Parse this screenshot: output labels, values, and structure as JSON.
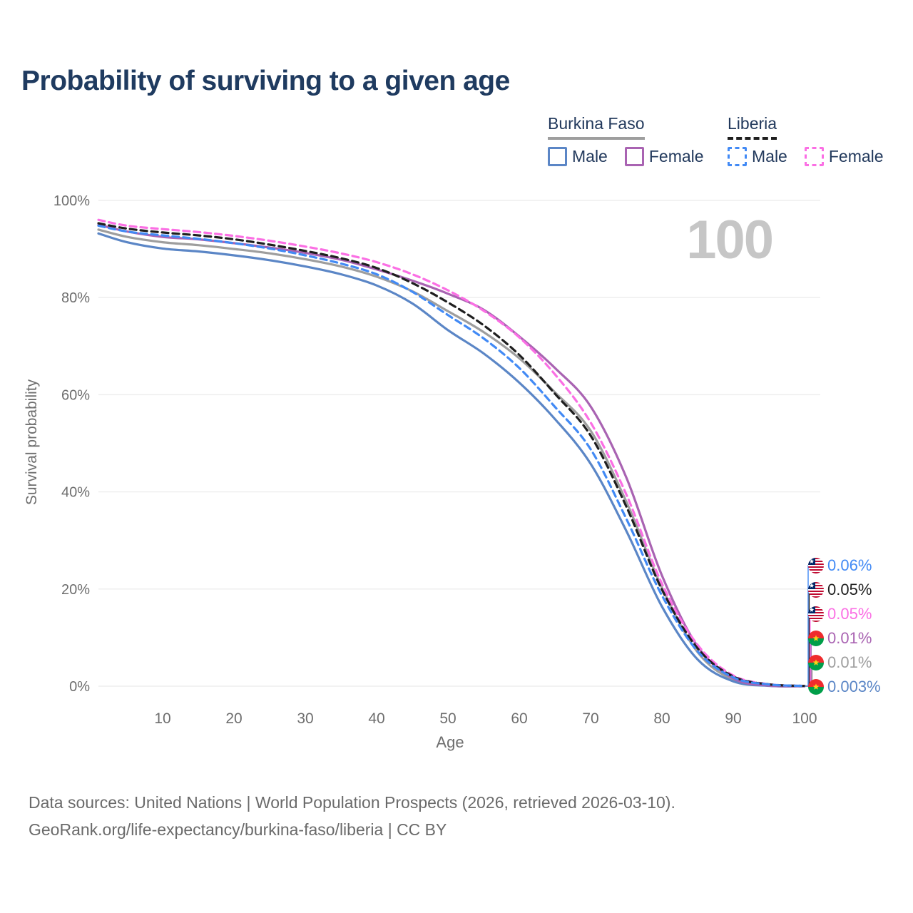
{
  "title": "Probability of surviving to a given age",
  "watermark": "100",
  "legend": {
    "groups": [
      {
        "name": "Burkina Faso",
        "line_style": "solid",
        "line_color": "#9e9e9e",
        "items": [
          {
            "label": "Male",
            "color": "#5b86c6",
            "dashed": false
          },
          {
            "label": "Female",
            "color": "#a963b2",
            "dashed": false
          }
        ]
      },
      {
        "name": "Liberia",
        "line_style": "dashed",
        "line_color": "#1f1f1f",
        "items": [
          {
            "label": "Male",
            "color": "#428af5",
            "dashed": true
          },
          {
            "label": "Female",
            "color": "#fb6fe4",
            "dashed": true
          }
        ]
      }
    ]
  },
  "chart_data": {
    "type": "line",
    "title": "Probability of surviving to a given age",
    "xlabel": "Age",
    "ylabel": "Survival probability",
    "xlim": [
      1,
      100
    ],
    "ylim": [
      0,
      100
    ],
    "grid": "horizontal-gridlines",
    "legend_position": "top-right",
    "x": [
      1,
      5,
      10,
      15,
      20,
      25,
      30,
      35,
      40,
      45,
      50,
      55,
      60,
      65,
      70,
      75,
      80,
      85,
      90,
      95,
      100
    ],
    "xticks": [
      10,
      20,
      30,
      40,
      50,
      60,
      70,
      80,
      90,
      100
    ],
    "yticks": [
      {
        "value": 0,
        "label": "0%"
      },
      {
        "value": 20,
        "label": "20%"
      },
      {
        "value": 40,
        "label": "40%"
      },
      {
        "value": 60,
        "label": "60%"
      },
      {
        "value": 80,
        "label": "80%"
      },
      {
        "value": 100,
        "label": "100%"
      }
    ],
    "series": [
      {
        "name": "Burkina Faso Male",
        "country": "Burkina Faso",
        "sex": "Male",
        "color": "#5b86c6",
        "dashed": false,
        "end_label": "0.003%",
        "values": [
          93.2,
          91.4,
          90.1,
          89.5,
          88.7,
          87.7,
          86.4,
          84.8,
          82.5,
          78.8,
          73.3,
          68.5,
          62.5,
          55.0,
          45.8,
          32.0,
          16.4,
          5.5,
          1.0,
          0.08,
          0.003
        ]
      },
      {
        "name": "Burkina Faso Female",
        "country": "Burkina Faso",
        "sex": "Female",
        "color": "#a963b2",
        "dashed": false,
        "end_label": "0.01%",
        "values": [
          95.0,
          93.6,
          92.5,
          92.0,
          91.2,
          90.3,
          89.2,
          87.8,
          85.8,
          83.5,
          80.8,
          77.5,
          72.0,
          65.5,
          57.6,
          43.0,
          22.8,
          8.2,
          1.6,
          0.12,
          0.01
        ]
      },
      {
        "name": "Burkina Faso Total",
        "country": "Burkina Faso",
        "sex": "Both",
        "color": "#9e9e9e",
        "dashed": false,
        "end_label": "0.01%",
        "values": [
          94.0,
          92.5,
          91.4,
          90.8,
          90.0,
          89.1,
          87.9,
          86.4,
          84.3,
          81.3,
          77.2,
          72.9,
          67.5,
          60.5,
          52.6,
          38.0,
          20.3,
          7.0,
          1.3,
          0.1,
          0.01
        ]
      },
      {
        "name": "Liberia Male",
        "country": "Liberia",
        "sex": "Male",
        "color": "#428af5",
        "dashed": true,
        "end_label": "0.06%",
        "values": [
          94.8,
          93.6,
          92.8,
          92.1,
          91.2,
          90.1,
          88.7,
          87.0,
          84.8,
          81.2,
          76.4,
          71.6,
          65.5,
          57.5,
          48.8,
          34.5,
          18.7,
          7.2,
          1.8,
          0.35,
          0.06
        ]
      },
      {
        "name": "Liberia Female",
        "country": "Liberia",
        "sex": "Female",
        "color": "#fb6fe4",
        "dashed": true,
        "end_label": "0.05%",
        "values": [
          96.0,
          94.8,
          94.1,
          93.5,
          92.7,
          91.7,
          90.5,
          89.1,
          87.3,
          84.8,
          81.5,
          77.3,
          71.8,
          64.2,
          54.3,
          39.5,
          21.1,
          8.5,
          2.2,
          0.4,
          0.05
        ]
      },
      {
        "name": "Liberia Total",
        "country": "Liberia",
        "sex": "Both",
        "color": "#1f1f1f",
        "dashed": true,
        "end_label": "0.05%",
        "values": [
          95.3,
          94.2,
          93.4,
          92.8,
          92.0,
          90.9,
          89.6,
          88.1,
          86.1,
          83.0,
          79.0,
          74.3,
          68.2,
          60.2,
          51.6,
          37.0,
          19.9,
          7.8,
          2.0,
          0.38,
          0.05
        ]
      }
    ]
  },
  "end_labels": [
    {
      "text": "0.06%",
      "series": "Liberia Male",
      "flag": "liberia"
    },
    {
      "text": "0.05%",
      "series": "Liberia Total",
      "flag": "liberia"
    },
    {
      "text": "0.05%",
      "series": "Liberia Female",
      "flag": "liberia"
    },
    {
      "text": "0.01%",
      "series": "Burkina Faso Female",
      "flag": "burkina-faso"
    },
    {
      "text": "0.01%",
      "series": "Burkina Faso Total",
      "flag": "burkina-faso"
    },
    {
      "text": "0.003%",
      "series": "Burkina Faso Male",
      "flag": "burkina-faso"
    }
  ],
  "footer": {
    "line1": "Data sources: United Nations | World Population Prospects (2026, retrieved 2026-03-10).",
    "line2": "GeoRank.org/life-expectancy/burkina-faso/liberia | CC BY"
  },
  "colors": {
    "title": "#1f3b60",
    "grid": "#ededed",
    "axis_text": "#6e6e6e",
    "watermark": "#c6c6c6",
    "footer": "#6a6a6a",
    "flag_liberia_red": "#bf0a30",
    "flag_liberia_blue": "#002868",
    "flag_burkina_red": "#ef2b2d",
    "flag_burkina_green": "#009e49",
    "flag_star_yellow": "#fcd116"
  }
}
